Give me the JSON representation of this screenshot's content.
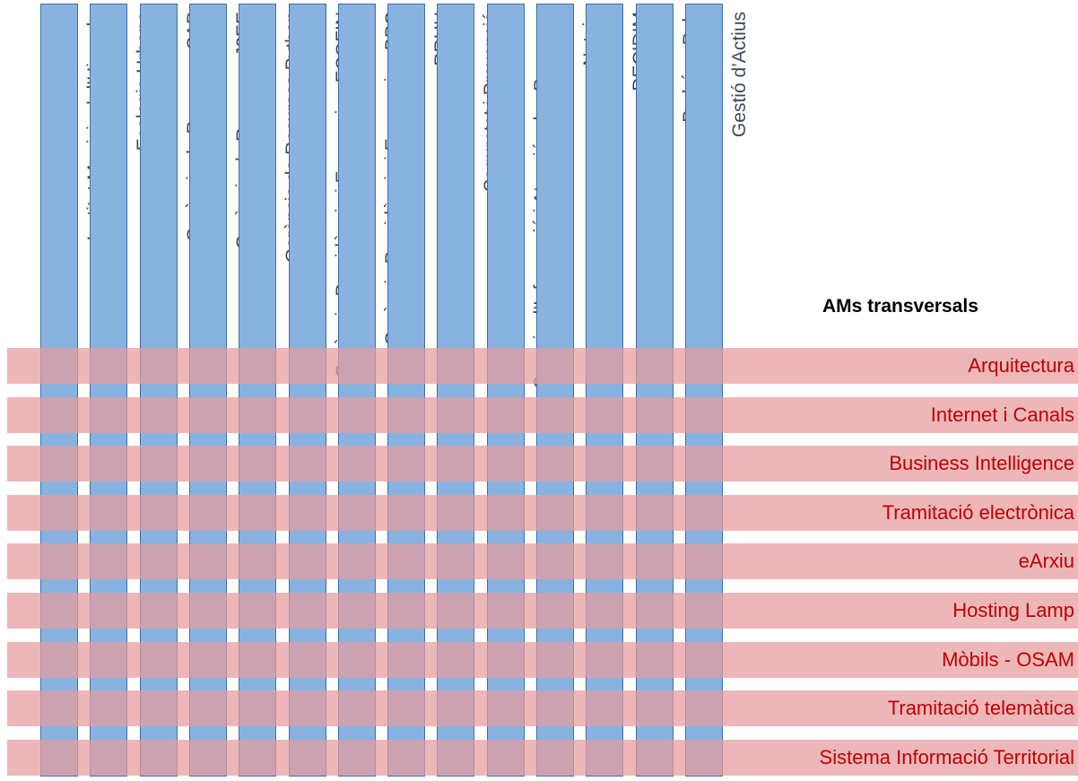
{
  "transversal_header": "AMs transversals",
  "columns": [
    {
      "label": "Institut Municipal d’Hisenda"
    },
    {
      "label": "Ecologia Urbana"
    },
    {
      "label": "Gerència de Recursos SAP"
    },
    {
      "label": "Gerència de Recursos J2EE"
    },
    {
      "label": "Gerència de Recursos Python"
    },
    {
      "label": "Gerència Presidència i Economia - ECOFIN"
    },
    {
      "label": "Gerència Presidència i Economia - BPC"
    },
    {
      "label": "RRHH"
    },
    {
      "label": "Seguretat i Prevenció"
    },
    {
      "label": "Serveis d’Informació i Atenció a les Persones"
    },
    {
      "label": "Neteja"
    },
    {
      "label": "DECIDIM"
    },
    {
      "label": "Padró - ePob"
    },
    {
      "label": "Gestió d’Actius"
    }
  ],
  "rows": [
    {
      "label": "Arquitectura"
    },
    {
      "label": "Internet i Canals"
    },
    {
      "label": "Business Intelligence"
    },
    {
      "label": "Tramitació electrònica"
    },
    {
      "label": "eArxiu"
    },
    {
      "label": "Hosting Lamp"
    },
    {
      "label": "Mòbils - OSAM"
    },
    {
      "label": "Tramitació telemàtica"
    },
    {
      "label": "Sistema Informació Territorial"
    }
  ],
  "colors": {
    "column_fill": "#88b3e1",
    "column_border": "#3f6ea8",
    "row_fill": "#e69b9e",
    "row_text": "#c00000"
  }
}
